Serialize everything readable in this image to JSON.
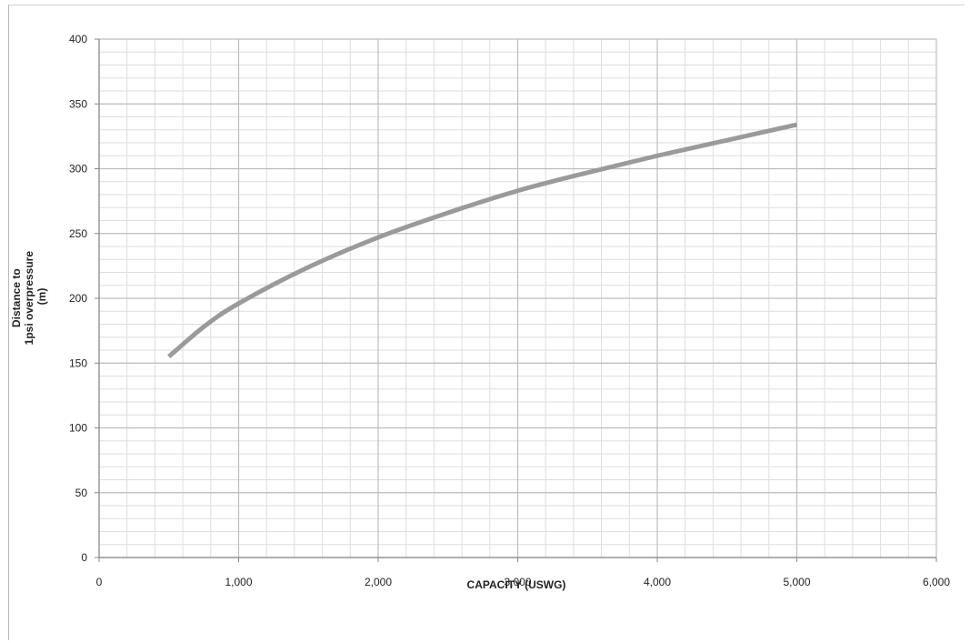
{
  "chart_data": {
    "type": "line",
    "title": "",
    "xlabel": "CAPACITY (USWG)",
    "ylabel_lines": [
      "Distance to",
      "1psi overpressure",
      "(m)"
    ],
    "xlim": [
      0,
      6000
    ],
    "ylim": [
      0,
      400
    ],
    "x_ticks": [
      0,
      1000,
      2000,
      3000,
      4000,
      5000,
      6000
    ],
    "x_tick_labels": [
      "0",
      "1,000",
      "2,000",
      "3,000",
      "4,000",
      "5,000",
      "6,000"
    ],
    "y_ticks": [
      0,
      50,
      100,
      150,
      200,
      250,
      300,
      350,
      400
    ],
    "y_tick_labels": [
      "0",
      "50",
      "100",
      "150",
      "200",
      "250",
      "300",
      "350",
      "400"
    ],
    "x_minor_step": 200,
    "y_minor_step": 10,
    "grid": true,
    "legend": "none",
    "series": [
      {
        "color": "#9a9a9a",
        "x": [
          500,
          750,
          1000,
          1500,
          2000,
          2500,
          3000,
          3500,
          4000,
          4500,
          5000
        ],
        "y": [
          155,
          178,
          196,
          224,
          247,
          266,
          283,
          297,
          310,
          322,
          334
        ]
      }
    ]
  },
  "colors": {
    "major_grid": "#bdbdbd",
    "minor_grid": "#dedede",
    "axis": "#888888"
  }
}
